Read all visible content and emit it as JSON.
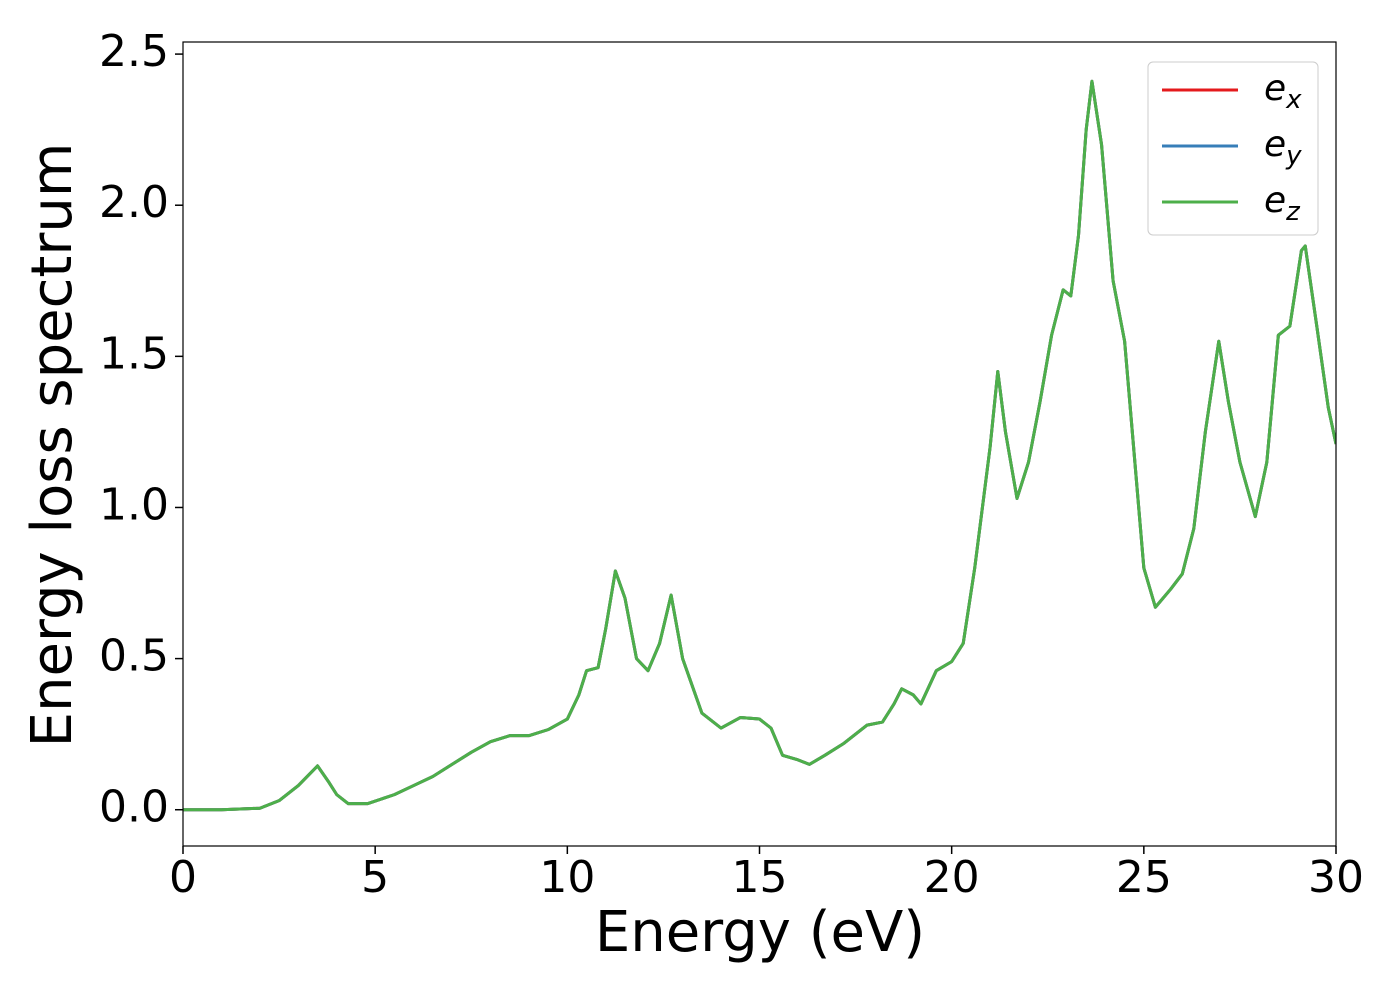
{
  "chart_data": {
    "type": "line",
    "x_label": "Energy (eV)",
    "y_label": "Energy loss spectrum",
    "x": [
      0,
      1,
      2,
      2.5,
      3,
      3.5,
      3.8,
      4,
      4.3,
      4.8,
      5.5,
      6,
      6.5,
      7,
      7.5,
      8,
      8.5,
      9,
      9.5,
      10,
      10.3,
      10.5,
      10.8,
      11,
      11.25,
      11.5,
      11.8,
      12.1,
      12.4,
      12.7,
      13,
      13.5,
      14,
      14.5,
      15,
      15.3,
      15.6,
      16,
      16.3,
      16.7,
      17.2,
      17.8,
      18.2,
      18.5,
      18.7,
      19,
      19.2,
      19.6,
      20,
      20.3,
      20.6,
      21,
      21.2,
      21.4,
      21.7,
      22,
      22.3,
      22.6,
      22.9,
      23.1,
      23.3,
      23.5,
      23.65,
      23.9,
      24.2,
      24.5,
      24.8,
      25,
      25.3,
      25.7,
      26,
      26.3,
      26.6,
      26.95,
      27.2,
      27.5,
      27.9,
      28.2,
      28.5,
      28.8,
      29.1,
      29.2,
      29.5,
      29.8,
      30
    ],
    "series": [
      {
        "name": "e_x",
        "color": "#e41a1c",
        "values": [
          0,
          0,
          0.005,
          0.03,
          0.08,
          0.145,
          0.09,
          0.05,
          0.02,
          0.02,
          0.05,
          0.08,
          0.11,
          0.15,
          0.19,
          0.225,
          0.245,
          0.245,
          0.265,
          0.3,
          0.38,
          0.46,
          0.47,
          0.6,
          0.79,
          0.7,
          0.5,
          0.46,
          0.55,
          0.71,
          0.5,
          0.32,
          0.27,
          0.305,
          0.3,
          0.27,
          0.18,
          0.165,
          0.15,
          0.18,
          0.22,
          0.28,
          0.29,
          0.35,
          0.4,
          0.38,
          0.35,
          0.46,
          0.49,
          0.55,
          0.8,
          1.2,
          1.45,
          1.25,
          1.03,
          1.15,
          1.35,
          1.57,
          1.72,
          1.7,
          1.9,
          2.25,
          2.41,
          2.2,
          1.75,
          1.55,
          1.1,
          0.8,
          0.67,
          0.73,
          0.78,
          0.93,
          1.25,
          1.55,
          1.35,
          1.15,
          0.97,
          1.15,
          1.57,
          1.6,
          1.85,
          1.865,
          1.6,
          1.33,
          1.21
        ]
      },
      {
        "name": "e_y",
        "color": "#377eb8",
        "values": [
          0,
          0,
          0.005,
          0.03,
          0.08,
          0.145,
          0.09,
          0.05,
          0.02,
          0.02,
          0.05,
          0.08,
          0.11,
          0.15,
          0.19,
          0.225,
          0.245,
          0.245,
          0.265,
          0.3,
          0.38,
          0.46,
          0.47,
          0.6,
          0.79,
          0.7,
          0.5,
          0.46,
          0.55,
          0.71,
          0.5,
          0.32,
          0.27,
          0.305,
          0.3,
          0.27,
          0.18,
          0.165,
          0.15,
          0.18,
          0.22,
          0.28,
          0.29,
          0.35,
          0.4,
          0.38,
          0.35,
          0.46,
          0.49,
          0.55,
          0.8,
          1.2,
          1.45,
          1.25,
          1.03,
          1.15,
          1.35,
          1.57,
          1.72,
          1.7,
          1.9,
          2.25,
          2.41,
          2.2,
          1.75,
          1.55,
          1.1,
          0.8,
          0.67,
          0.73,
          0.78,
          0.93,
          1.25,
          1.55,
          1.35,
          1.15,
          0.97,
          1.15,
          1.57,
          1.6,
          1.85,
          1.865,
          1.6,
          1.33,
          1.21
        ]
      },
      {
        "name": "e_z",
        "color": "#4daf4a",
        "values": [
          0,
          0,
          0.005,
          0.03,
          0.08,
          0.145,
          0.09,
          0.05,
          0.02,
          0.02,
          0.05,
          0.08,
          0.11,
          0.15,
          0.19,
          0.225,
          0.245,
          0.245,
          0.265,
          0.3,
          0.38,
          0.46,
          0.47,
          0.6,
          0.79,
          0.7,
          0.5,
          0.46,
          0.55,
          0.71,
          0.5,
          0.32,
          0.27,
          0.305,
          0.3,
          0.27,
          0.18,
          0.165,
          0.15,
          0.18,
          0.22,
          0.28,
          0.29,
          0.35,
          0.4,
          0.38,
          0.35,
          0.46,
          0.49,
          0.55,
          0.8,
          1.2,
          1.45,
          1.25,
          1.03,
          1.15,
          1.35,
          1.57,
          1.72,
          1.7,
          1.9,
          2.25,
          2.41,
          2.2,
          1.75,
          1.55,
          1.1,
          0.8,
          0.67,
          0.73,
          0.78,
          0.93,
          1.25,
          1.55,
          1.35,
          1.15,
          0.97,
          1.15,
          1.57,
          1.6,
          1.85,
          1.865,
          1.6,
          1.33,
          1.21
        ]
      }
    ],
    "xlim": [
      0,
      30
    ],
    "xticks": [
      0,
      5,
      10,
      15,
      20,
      25,
      30
    ],
    "ylim": [
      -0.12,
      2.54
    ],
    "yticks": [
      {
        "value": 0,
        "label": "0.0"
      },
      0.5,
      {
        "value": 1,
        "label": "1.0"
      },
      1.5,
      {
        "value": 2,
        "label": "2.0"
      },
      2.5
    ],
    "legend": "upper right",
    "grid": false
  }
}
